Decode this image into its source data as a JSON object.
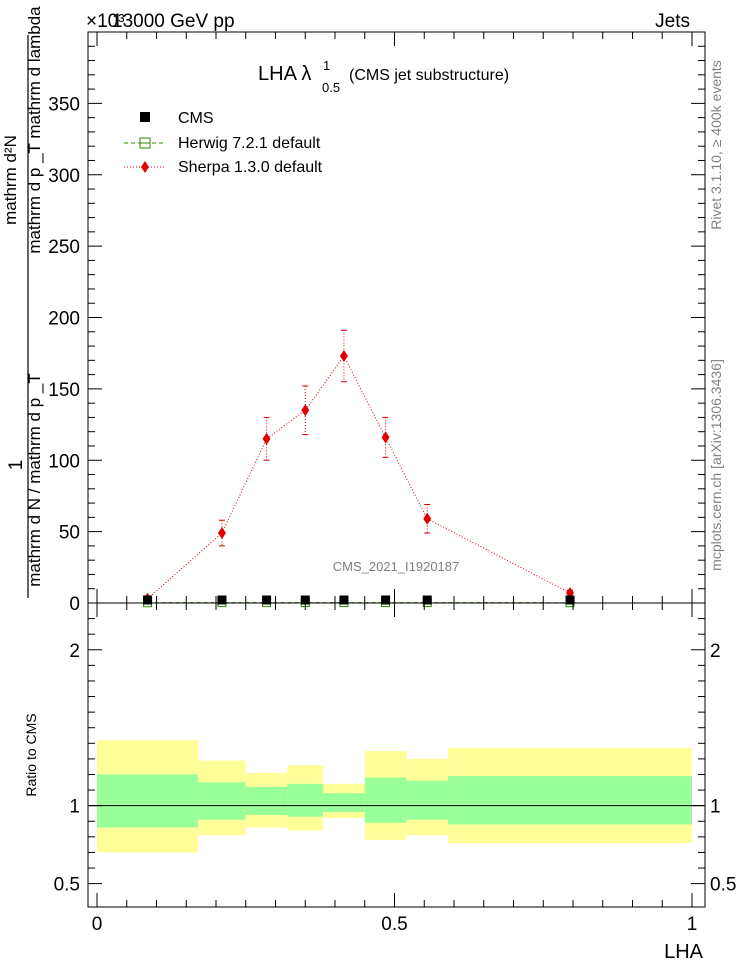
{
  "header": {
    "energy_label": "13000 GeV pp",
    "category_label": "Jets",
    "exponent_label": "×10³",
    "rivet_label": "Rivet 3.1.10, ≥ 400k events",
    "site_label": "mcplots.cern.ch [arXiv:1306.3436]",
    "analysis_watermark": "CMS_2021_I1920187"
  },
  "colors": {
    "cms": "#000000",
    "herwig": "#2b8a00",
    "sherpa": "#e00000",
    "band_outer": "#ffff99",
    "band_inner": "#99ff99"
  },
  "chart_data": [
    {
      "type": "line",
      "title": "LHA λ",
      "title_sup": "1",
      "title_sub": "0.5",
      "title_suffix": "(CMS jet substructure)",
      "ylabel_top": "1",
      "ylabel_bottom": "mathrm d N / mathrm d p _T",
      "ylabel_num": "mathrm d²N",
      "ylabel_den": "mathrm d p _T mathrm d lambda",
      "xlim": [
        0,
        1
      ],
      "ylim": [
        0,
        400
      ],
      "yticks": [
        0,
        50,
        100,
        150,
        200,
        250,
        300,
        350
      ],
      "legend": [
        {
          "name": "CMS",
          "style": "cms"
        },
        {
          "name": "Herwig 7.2.1 default",
          "style": "herwig"
        },
        {
          "name": "Sherpa 1.3.0 default",
          "style": "sherpa"
        }
      ],
      "series": [
        {
          "name": "CMS",
          "x": [
            0.085,
            0.21,
            0.285,
            0.35,
            0.415,
            0.485,
            0.555,
            0.795
          ],
          "y": [
            0.3,
            0.6,
            0.6,
            0.6,
            0.6,
            0.6,
            0.6,
            0.3
          ]
        },
        {
          "name": "Herwig 7.2.1 default",
          "x": [
            0.085,
            0.21,
            0.285,
            0.35,
            0.415,
            0.485,
            0.555,
            0.795
          ],
          "y": [
            0.2,
            0.3,
            0.3,
            0.3,
            0.3,
            0.3,
            0.3,
            0.2
          ]
        },
        {
          "name": "Sherpa 1.3.0 default",
          "x": [
            0.085,
            0.21,
            0.285,
            0.35,
            0.415,
            0.485,
            0.555,
            0.795
          ],
          "y": [
            3,
            49,
            115,
            135,
            173,
            116,
            59,
            7
          ],
          "err": [
            2,
            9,
            15,
            17,
            18,
            14,
            10,
            2
          ]
        }
      ]
    },
    {
      "type": "area",
      "ylabel": "Ratio to CMS",
      "xlabel": "LHA",
      "xlim": [
        0,
        1
      ],
      "ylim": [
        0.35,
        2.3
      ],
      "yticks": [
        0.5,
        1,
        2
      ],
      "ytick_labels": [
        "0.5",
        "1",
        "2"
      ],
      "xticks": [
        0,
        0.5,
        1
      ],
      "xtick_labels": [
        "0",
        "0.5",
        "1"
      ],
      "bins": [
        {
          "x0": 0.0,
          "x1": 0.17,
          "outer": [
            0.7,
            1.42
          ],
          "inner": [
            0.86,
            1.2
          ]
        },
        {
          "x0": 0.17,
          "x1": 0.25,
          "outer": [
            0.81,
            1.29
          ],
          "inner": [
            0.91,
            1.15
          ]
        },
        {
          "x0": 0.25,
          "x1": 0.32,
          "outer": [
            0.86,
            1.21
          ],
          "inner": [
            0.94,
            1.12
          ]
        },
        {
          "x0": 0.32,
          "x1": 0.38,
          "outer": [
            0.84,
            1.26
          ],
          "inner": [
            0.93,
            1.14
          ]
        },
        {
          "x0": 0.38,
          "x1": 0.45,
          "outer": [
            0.92,
            1.14
          ],
          "inner": [
            0.96,
            1.08
          ]
        },
        {
          "x0": 0.45,
          "x1": 0.52,
          "outer": [
            0.78,
            1.35
          ],
          "inner": [
            0.89,
            1.18
          ]
        },
        {
          "x0": 0.52,
          "x1": 0.59,
          "outer": [
            0.81,
            1.3
          ],
          "inner": [
            0.91,
            1.16
          ]
        },
        {
          "x0": 0.59,
          "x1": 1.0,
          "outer": [
            0.76,
            1.37
          ],
          "inner": [
            0.88,
            1.19
          ]
        }
      ]
    }
  ]
}
